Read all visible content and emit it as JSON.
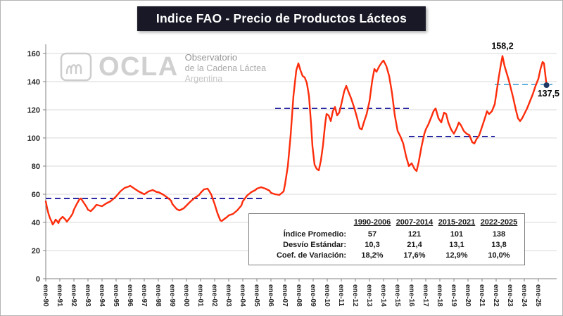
{
  "window": {
    "title": "Indice FAO - Precio de Productos Lácteos"
  },
  "logo": {
    "acronym": "OCLA",
    "line1": "Observatorio",
    "line2": "de la Cadena Láctea",
    "line3": "Argentina",
    "icon": "ocla-squiggle-icon"
  },
  "chart_data": {
    "type": "line",
    "title": "Indice FAO - Precio de Productos Lácteos",
    "xlabel": "",
    "ylabel": "",
    "ylim": [
      0,
      160
    ],
    "yticks": [
      0,
      20,
      40,
      60,
      80,
      100,
      120,
      140,
      160
    ],
    "xlim": [
      1990.0,
      2026.3
    ],
    "grid": true,
    "legend": "none",
    "grid_color": "#d9d9d9",
    "axis_color": "#808080",
    "x_labels": [
      "ene-90",
      "ene-91",
      "ene-92",
      "ene-93",
      "ene-94",
      "ene-95",
      "ene-96",
      "ene-97",
      "ene-98",
      "ene-99",
      "ene-00",
      "ene-01",
      "ene-02",
      "ene-03",
      "ene-04",
      "ene-05",
      "ene-06",
      "ene-07",
      "ene-08",
      "ene-09",
      "ene-10",
      "ene-11",
      "ene-12",
      "ene-13",
      "ene-14",
      "ene-15",
      "ene-16",
      "ene-17",
      "ene-18",
      "ene-19",
      "ene-20",
      "ene-21",
      "ene-22",
      "ene-23",
      "ene-24",
      "ene-25"
    ],
    "series": [
      {
        "name": "Indice FAO Precio Productos Lácteos",
        "color": "#fd2d0c",
        "points": [
          [
            1990.0,
            55
          ],
          [
            1990.1,
            50
          ],
          [
            1990.2,
            46
          ],
          [
            1990.3,
            43
          ],
          [
            1990.4,
            41
          ],
          [
            1990.5,
            38.5
          ],
          [
            1990.6,
            40
          ],
          [
            1990.7,
            42
          ],
          [
            1990.8,
            41
          ],
          [
            1990.9,
            39.5
          ],
          [
            1991.0,
            42
          ],
          [
            1991.2,
            44
          ],
          [
            1991.4,
            42
          ],
          [
            1991.5,
            40.5
          ],
          [
            1991.7,
            43
          ],
          [
            1991.9,
            46
          ],
          [
            1992.0,
            49
          ],
          [
            1992.2,
            53
          ],
          [
            1992.4,
            56.5
          ],
          [
            1992.5,
            57
          ],
          [
            1992.7,
            54
          ],
          [
            1992.9,
            51
          ],
          [
            1993.0,
            49
          ],
          [
            1993.2,
            48
          ],
          [
            1993.4,
            50
          ],
          [
            1993.6,
            52.5
          ],
          [
            1993.8,
            52
          ],
          [
            1994.0,
            51.5
          ],
          [
            1994.3,
            53.5
          ],
          [
            1994.6,
            55
          ],
          [
            1994.9,
            57.5
          ],
          [
            1995.0,
            58.5
          ],
          [
            1995.3,
            62
          ],
          [
            1995.6,
            64.5
          ],
          [
            1995.9,
            65.5
          ],
          [
            1996.0,
            66
          ],
          [
            1996.3,
            64
          ],
          [
            1996.6,
            62
          ],
          [
            1996.9,
            60.5
          ],
          [
            1997.0,
            60
          ],
          [
            1997.3,
            62
          ],
          [
            1997.6,
            63
          ],
          [
            1997.9,
            61.5
          ],
          [
            1998.0,
            61.5
          ],
          [
            1998.3,
            60
          ],
          [
            1998.6,
            58
          ],
          [
            1998.9,
            55.5
          ],
          [
            1999.0,
            53
          ],
          [
            1999.3,
            49.5
          ],
          [
            1999.5,
            48.5
          ],
          [
            1999.8,
            50
          ],
          [
            2000.0,
            52
          ],
          [
            2000.3,
            55
          ],
          [
            2000.6,
            57.5
          ],
          [
            2000.9,
            59.5
          ],
          [
            2001.0,
            61
          ],
          [
            2001.25,
            63.5
          ],
          [
            2001.5,
            64
          ],
          [
            2001.75,
            60
          ],
          [
            2002.0,
            53
          ],
          [
            2002.2,
            46.5
          ],
          [
            2002.4,
            41.5
          ],
          [
            2002.5,
            41
          ],
          [
            2002.7,
            42.5
          ],
          [
            2002.9,
            44
          ],
          [
            2003.0,
            45
          ],
          [
            2003.3,
            46
          ],
          [
            2003.6,
            48.5
          ],
          [
            2003.9,
            52
          ],
          [
            2004.0,
            55
          ],
          [
            2004.3,
            59
          ],
          [
            2004.6,
            61.5
          ],
          [
            2004.9,
            63
          ],
          [
            2005.0,
            64
          ],
          [
            2005.3,
            65
          ],
          [
            2005.6,
            64
          ],
          [
            2005.9,
            62.5
          ],
          [
            2006.0,
            61
          ],
          [
            2006.3,
            60
          ],
          [
            2006.6,
            59.5
          ],
          [
            2006.9,
            62
          ],
          [
            2007.0,
            67
          ],
          [
            2007.2,
            80
          ],
          [
            2007.4,
            102
          ],
          [
            2007.6,
            130
          ],
          [
            2007.8,
            148
          ],
          [
            2007.95,
            153
          ],
          [
            2008.1,
            148
          ],
          [
            2008.25,
            144
          ],
          [
            2008.4,
            143
          ],
          [
            2008.55,
            139
          ],
          [
            2008.7,
            130
          ],
          [
            2008.85,
            110
          ],
          [
            2008.95,
            94
          ],
          [
            2009.1,
            81
          ],
          [
            2009.25,
            78
          ],
          [
            2009.4,
            77
          ],
          [
            2009.55,
            84
          ],
          [
            2009.7,
            95
          ],
          [
            2009.85,
            110
          ],
          [
            2009.95,
            117
          ],
          [
            2010.1,
            116
          ],
          [
            2010.25,
            112
          ],
          [
            2010.4,
            119
          ],
          [
            2010.55,
            122
          ],
          [
            2010.7,
            116
          ],
          [
            2010.85,
            118
          ],
          [
            2011.0,
            124
          ],
          [
            2011.2,
            133
          ],
          [
            2011.35,
            137
          ],
          [
            2011.5,
            133
          ],
          [
            2011.7,
            128
          ],
          [
            2011.9,
            122
          ],
          [
            2012.1,
            115
          ],
          [
            2012.3,
            107
          ],
          [
            2012.45,
            106
          ],
          [
            2012.6,
            111
          ],
          [
            2012.8,
            117
          ],
          [
            2013.0,
            126
          ],
          [
            2013.2,
            141
          ],
          [
            2013.35,
            149
          ],
          [
            2013.5,
            147
          ],
          [
            2013.7,
            151
          ],
          [
            2013.9,
            154
          ],
          [
            2014.0,
            155
          ],
          [
            2014.2,
            151
          ],
          [
            2014.4,
            144
          ],
          [
            2014.6,
            132
          ],
          [
            2014.8,
            116
          ],
          [
            2015.0,
            105
          ],
          [
            2015.2,
            101
          ],
          [
            2015.4,
            96
          ],
          [
            2015.6,
            87
          ],
          [
            2015.8,
            80
          ],
          [
            2016.0,
            82
          ],
          [
            2016.2,
            78
          ],
          [
            2016.35,
            76.5
          ],
          [
            2016.5,
            83
          ],
          [
            2016.7,
            94
          ],
          [
            2016.9,
            103
          ],
          [
            2017.0,
            106
          ],
          [
            2017.2,
            110
          ],
          [
            2017.4,
            115
          ],
          [
            2017.55,
            119
          ],
          [
            2017.7,
            121
          ],
          [
            2017.9,
            114
          ],
          [
            2018.1,
            111
          ],
          [
            2018.3,
            118
          ],
          [
            2018.45,
            117
          ],
          [
            2018.6,
            111
          ],
          [
            2018.8,
            106
          ],
          [
            2019.0,
            103
          ],
          [
            2019.2,
            107
          ],
          [
            2019.35,
            111
          ],
          [
            2019.5,
            109
          ],
          [
            2019.7,
            105
          ],
          [
            2019.9,
            103
          ],
          [
            2020.1,
            102
          ],
          [
            2020.3,
            97
          ],
          [
            2020.45,
            96
          ],
          [
            2020.6,
            99
          ],
          [
            2020.8,
            102
          ],
          [
            2021.0,
            108
          ],
          [
            2021.2,
            114
          ],
          [
            2021.35,
            119
          ],
          [
            2021.5,
            117
          ],
          [
            2021.7,
            119
          ],
          [
            2021.9,
            124
          ],
          [
            2022.05,
            134
          ],
          [
            2022.2,
            144
          ],
          [
            2022.35,
            153
          ],
          [
            2022.45,
            158.2
          ],
          [
            2022.6,
            151
          ],
          [
            2022.75,
            146
          ],
          [
            2022.9,
            141
          ],
          [
            2023.0,
            137
          ],
          [
            2023.2,
            129
          ],
          [
            2023.4,
            120
          ],
          [
            2023.55,
            114
          ],
          [
            2023.7,
            112
          ],
          [
            2023.85,
            114
          ],
          [
            2024.0,
            117
          ],
          [
            2024.2,
            121
          ],
          [
            2024.4,
            126
          ],
          [
            2024.6,
            131
          ],
          [
            2024.8,
            137
          ],
          [
            2025.0,
            142
          ],
          [
            2025.15,
            149
          ],
          [
            2025.3,
            154
          ],
          [
            2025.4,
            153
          ],
          [
            2025.58,
            137.5
          ]
        ]
      }
    ],
    "avg_lines": [
      {
        "period": "1990-2006",
        "value": 57,
        "from": 1990.0,
        "to": 2005.5,
        "color": "#2a2aa4",
        "width": 2
      },
      {
        "period": "2007-2014",
        "value": 121,
        "from": 2006.3,
        "to": 2015.8,
        "color": "#2a2aa4",
        "width": 2
      },
      {
        "period": "2015-2021",
        "value": 101,
        "from": 2015.8,
        "to": 2021.9,
        "color": "#2a2aa4",
        "width": 2
      },
      {
        "period": "2022-2025",
        "value": 138,
        "from": 2021.9,
        "to": 2026.0,
        "color": "#4da4d9",
        "width": 1.8
      }
    ],
    "annotations": [
      {
        "text": "158,2",
        "x": 2022.45,
        "y": 158.2,
        "placement": "above"
      },
      {
        "text": "137,5",
        "x": 2025.58,
        "y": 137.5,
        "placement": "end"
      }
    ],
    "end_marker": {
      "x": 2025.58,
      "y": 137.5,
      "color": "#1f3864",
      "radius": 4
    }
  },
  "stats_table": {
    "columns": [
      "1990-2006",
      "2007-2014",
      "2015-2021",
      "2022-2025"
    ],
    "rows": [
      {
        "label": "Índice Promedio:",
        "values": [
          "57",
          "121",
          "101",
          "138"
        ]
      },
      {
        "label": "Desvío Estándar:",
        "values": [
          "10,3",
          "21,4",
          "13,1",
          "13,8"
        ]
      },
      {
        "label": "Coef. de Variación:",
        "values": [
          "18,2%",
          "17,6%",
          "12,9%",
          "10,0%"
        ]
      }
    ]
  }
}
